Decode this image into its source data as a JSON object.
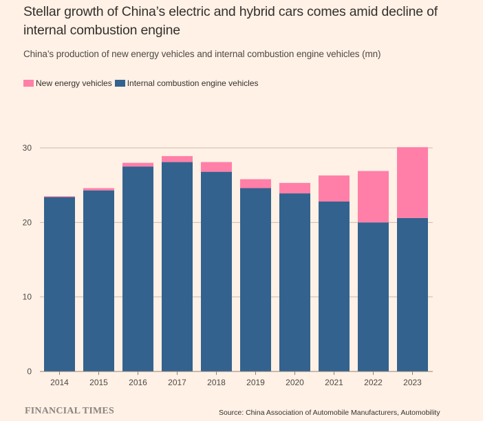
{
  "title": "Stellar growth of China’s electric and hybrid cars comes amid decline of internal combustion engine",
  "subtitle": "China’s production of new energy vehicles and internal combustion engine vehicles (mn)",
  "legend": [
    {
      "label": "New energy vehicles",
      "color": "#ff7fa8"
    },
    {
      "label": "Internal combustion engine vehicles",
      "color": "#33628f"
    }
  ],
  "footer": {
    "brand": "FINANCIAL TIMES",
    "source": "Source: China Association of Automobile Manufacturers, Automobility"
  },
  "chart_data": {
    "type": "bar",
    "stacked": true,
    "title": "Stellar growth of China’s electric and hybrid cars comes amid decline of internal combustion engine",
    "subtitle": "China’s production of new energy vehicles and internal combustion engine vehicles (mn)",
    "xlabel": "",
    "ylabel": "",
    "categories": [
      "2014",
      "2015",
      "2016",
      "2017",
      "2018",
      "2019",
      "2020",
      "2021",
      "2022",
      "2023"
    ],
    "series": [
      {
        "name": "Internal combustion engine vehicles",
        "color": "#33628f",
        "values": [
          23.4,
          24.3,
          27.5,
          28.1,
          26.8,
          24.6,
          23.9,
          22.8,
          20.0,
          20.6
        ]
      },
      {
        "name": "New energy vehicles",
        "color": "#ff7fa8",
        "values": [
          0.1,
          0.3,
          0.5,
          0.8,
          1.3,
          1.2,
          1.4,
          3.5,
          6.9,
          9.5
        ]
      }
    ],
    "ylim": [
      0,
      30
    ],
    "yticks": [
      0,
      10,
      20,
      30
    ],
    "grid": true,
    "legend_position": "top-left"
  }
}
